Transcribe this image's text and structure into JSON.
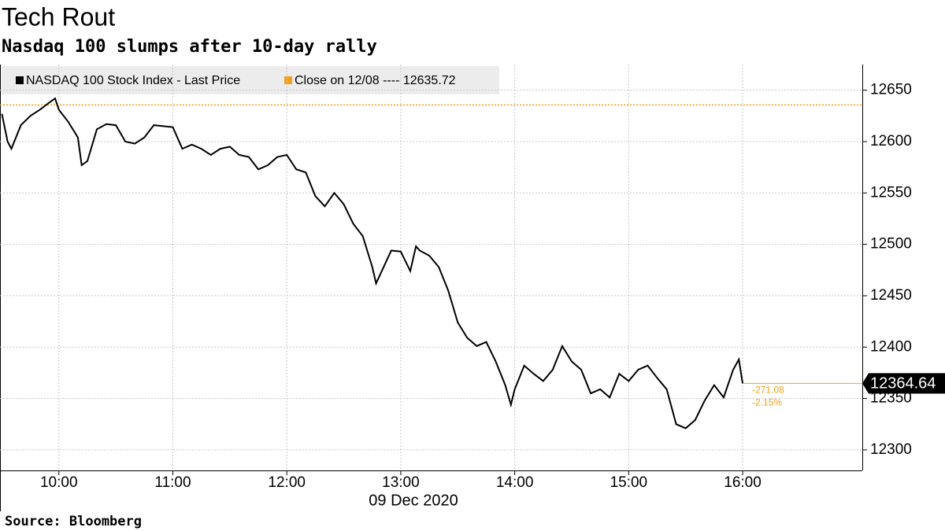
{
  "chart_data": {
    "type": "line",
    "title": "Tech Rout",
    "subtitle": "Nasdaq 100 slumps after 10-day rally",
    "x_label": "09 Dec 2020",
    "source": "Source: Bloomberg",
    "x": [
      "09:30",
      "09:33",
      "09:35",
      "09:40",
      "09:45",
      "09:50",
      "09:55",
      "09:58",
      "10:00",
      "10:05",
      "10:10",
      "10:12",
      "10:15",
      "10:20",
      "10:25",
      "10:30",
      "10:35",
      "10:40",
      "10:45",
      "10:50",
      "11:00",
      "11:05",
      "11:10",
      "11:15",
      "11:20",
      "11:25",
      "11:30",
      "11:35",
      "11:40",
      "11:45",
      "11:50",
      "11:55",
      "12:00",
      "12:05",
      "12:10",
      "12:15",
      "12:20",
      "12:25",
      "12:30",
      "12:35",
      "12:40",
      "12:45",
      "12:47",
      "12:50",
      "12:55",
      "13:00",
      "13:05",
      "13:08",
      "13:10",
      "13:15",
      "13:20",
      "13:25",
      "13:30",
      "13:35",
      "13:40",
      "13:45",
      "13:50",
      "13:55",
      "13:58",
      "14:00",
      "14:05",
      "14:10",
      "14:15",
      "14:20",
      "14:25",
      "14:30",
      "14:35",
      "14:40",
      "14:45",
      "14:50",
      "14:55",
      "15:00",
      "15:05",
      "15:10",
      "15:15",
      "15:20",
      "15:25",
      "15:30",
      "15:35",
      "15:40",
      "15:45",
      "15:50",
      "15:55",
      "15:58",
      "16:00"
    ],
    "series": [
      {
        "name": "NASDAQ 100 Stock Index - Last Price",
        "color": "#000000",
        "values": [
          12627,
          12600,
          12593,
          12616,
          12625,
          12631,
          12638,
          12642,
          12631,
          12619,
          12604,
          12577,
          12581,
          12612,
          12617,
          12616,
          12600,
          12598,
          12604,
          12616,
          12614,
          12593,
          12597,
          12593,
          12587,
          12593,
          12595,
          12587,
          12585,
          12573,
          12577,
          12585,
          12587,
          12573,
          12570,
          12547,
          12537,
          12550,
          12539,
          12520,
          12508,
          12478,
          12462,
          12474,
          12494,
          12493,
          12474,
          12498,
          12494,
          12489,
          12478,
          12455,
          12424,
          12409,
          12401,
          12405,
          12386,
          12363,
          12344,
          12359,
          12382,
          12374,
          12367,
          12378,
          12401,
          12386,
          12378,
          12355,
          12359,
          12351,
          12374,
          12367,
          12378,
          12382,
          12370,
          12359,
          12325,
          12321,
          12329,
          12348,
          12363,
          12351,
          12378,
          12388,
          12364.64
        ]
      }
    ],
    "reference": {
      "name": "Close on 12/08 ---- 12635.72",
      "value": 12635.72,
      "color": "#f0a01e"
    },
    "last_value": 12364.64,
    "change": -271.08,
    "change_pct": {
      "value": -2.15,
      "label": "-2.15%"
    },
    "xlim": [
      "09:29",
      "17:03"
    ],
    "xticks": [
      "10:00",
      "11:00",
      "12:00",
      "13:00",
      "14:00",
      "15:00",
      "16:00"
    ],
    "ylim": [
      12280,
      12675
    ],
    "yticks": [
      12300,
      12350,
      12400,
      12450,
      12500,
      12550,
      12600,
      12650
    ],
    "grid": true
  }
}
